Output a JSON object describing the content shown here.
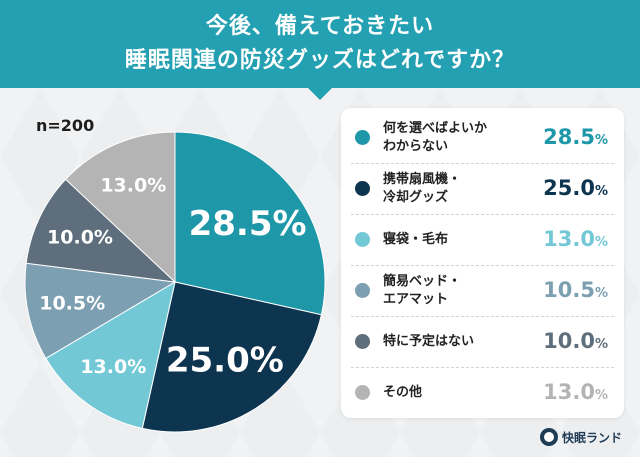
{
  "header": {
    "title_line1": "今後、備えておきたい",
    "title_line2": "睡眠関連の防災グッズはどれですか？"
  },
  "sample_label": "n=200",
  "brand": {
    "name": "快眠ランド"
  },
  "colors": {
    "header_bg": "#23a0b1",
    "legend_bg": "#ffffff"
  },
  "chart_data": {
    "type": "pie",
    "title": "今後、備えておきたい睡眠関連の防災グッズはどれですか？",
    "n": "n=200",
    "categories": [
      "何を選べばよいかわからない",
      "携帯扇風機・冷却グッズ",
      "寝袋・毛布",
      "簡易ベッド・エアマット",
      "特に予定はない",
      "その他"
    ],
    "values": [
      28.5,
      25.0,
      13.0,
      10.5,
      10.0,
      13.0
    ],
    "unit": "%",
    "slices": [
      {
        "label_lines": [
          "何を選べばよいか",
          "わからない"
        ],
        "value": 28.5,
        "value_text": "28.5",
        "color": "#1e97a8",
        "label_color": "#ffffff",
        "legend_value_color": "#1e97a8"
      },
      {
        "label_lines": [
          "携帯扇風機・",
          "冷却グッズ"
        ],
        "value": 25.0,
        "value_text": "25.0",
        "color": "#0e3550",
        "label_color": "#ffffff",
        "legend_value_color": "#0e3550"
      },
      {
        "label_lines": [
          "寝袋・毛布"
        ],
        "value": 13.0,
        "value_text": "13.0",
        "color": "#73c8d6",
        "label_color": "#ffffff",
        "legend_value_color": "#73c8d6"
      },
      {
        "label_lines": [
          "簡易ベッド・",
          "エアマット"
        ],
        "value": 10.5,
        "value_text": "10.5",
        "color": "#7c9fb2",
        "label_color": "#ffffff",
        "legend_value_color": "#7c9fb2"
      },
      {
        "label_lines": [
          "特に予定はない"
        ],
        "value": 10.0,
        "value_text": "10.0",
        "color": "#5e6e7c",
        "label_color": "#ffffff",
        "legend_value_color": "#5e6e7c"
      },
      {
        "label_lines": [
          "その他"
        ],
        "value": 13.0,
        "value_text": "13.0",
        "color": "#b4b4b4",
        "label_color": "#ffffff",
        "legend_value_color": "#b4b4b4"
      }
    ],
    "legend_placement": "right"
  }
}
